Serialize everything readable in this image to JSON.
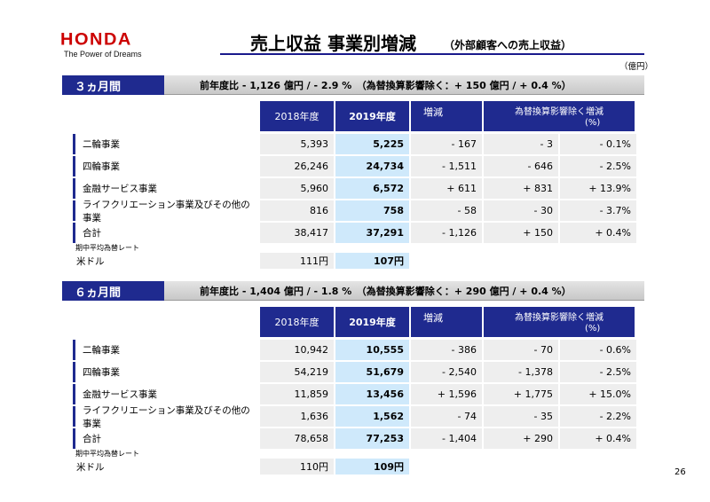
{
  "brand": {
    "logo": "HONDA",
    "tagline": "The Power of Dreams"
  },
  "title": "売上収益 事業別増減",
  "subtitle": "（外部顧客への売上収益）",
  "unit": "（億円）",
  "page_number": "26",
  "columns": {
    "prev": "2018年度",
    "curr": "2019年度",
    "change": "増減",
    "fx_excl": "為替換算影響除く増減",
    "pct": "(%)"
  },
  "rate_note": "期中平均為替レート",
  "sections": [
    {
      "label": "３ヵ月間",
      "summary": "前年度比 - 1,126 億円 / - 2.9 %　（為替換算影響除く：+ 150 億円 / + 0.4 %）",
      "rows": [
        {
          "name": "二輪事業",
          "prev": "5,393",
          "curr": "5,225",
          "change": "- 167",
          "fx": "- 3",
          "pct": "- 0.1%"
        },
        {
          "name": "四輪事業",
          "prev": "26,246",
          "curr": "24,734",
          "change": "- 1,511",
          "fx": "- 646",
          "pct": "- 2.5%"
        },
        {
          "name": "金融サービス事業",
          "prev": "5,960",
          "curr": "6,572",
          "change": "+ 611",
          "fx": "+ 831",
          "pct": "+ 13.9%"
        },
        {
          "name": "ライフクリエーション事業及びその他の事業",
          "prev": "816",
          "curr": "758",
          "change": "- 58",
          "fx": "- 30",
          "pct": "- 3.7%"
        },
        {
          "name": "合計",
          "prev": "38,417",
          "curr": "37,291",
          "change": "- 1,126",
          "fx": "+ 150",
          "pct": "+ 0.4%"
        }
      ],
      "rate": {
        "name": "米ドル",
        "prev": "111円",
        "curr": "107円"
      }
    },
    {
      "label": "６ヵ月間",
      "summary": "前年度比 - 1,404 億円 / - 1.8 %　（為替換算影響除く：+ 290 億円 / + 0.4 %）",
      "rows": [
        {
          "name": "二輪事業",
          "prev": "10,942",
          "curr": "10,555",
          "change": "- 386",
          "fx": "- 70",
          "pct": "- 0.6%"
        },
        {
          "name": "四輪事業",
          "prev": "54,219",
          "curr": "51,679",
          "change": "- 2,540",
          "fx": "- 1,378",
          "pct": "- 2.5%"
        },
        {
          "name": "金融サービス事業",
          "prev": "11,859",
          "curr": "13,456",
          "change": "+ 1,596",
          "fx": "+ 1,775",
          "pct": "+ 15.0%"
        },
        {
          "name": "ライフクリエーション事業及びその他の事業",
          "prev": "1,636",
          "curr": "1,562",
          "change": "- 74",
          "fx": "- 35",
          "pct": "- 2.2%"
        },
        {
          "name": "合計",
          "prev": "78,658",
          "curr": "77,253",
          "change": "- 1,404",
          "fx": "+ 290",
          "pct": "+ 0.4%"
        }
      ],
      "rate": {
        "name": "米ドル",
        "prev": "110円",
        "curr": "109円"
      }
    }
  ]
}
